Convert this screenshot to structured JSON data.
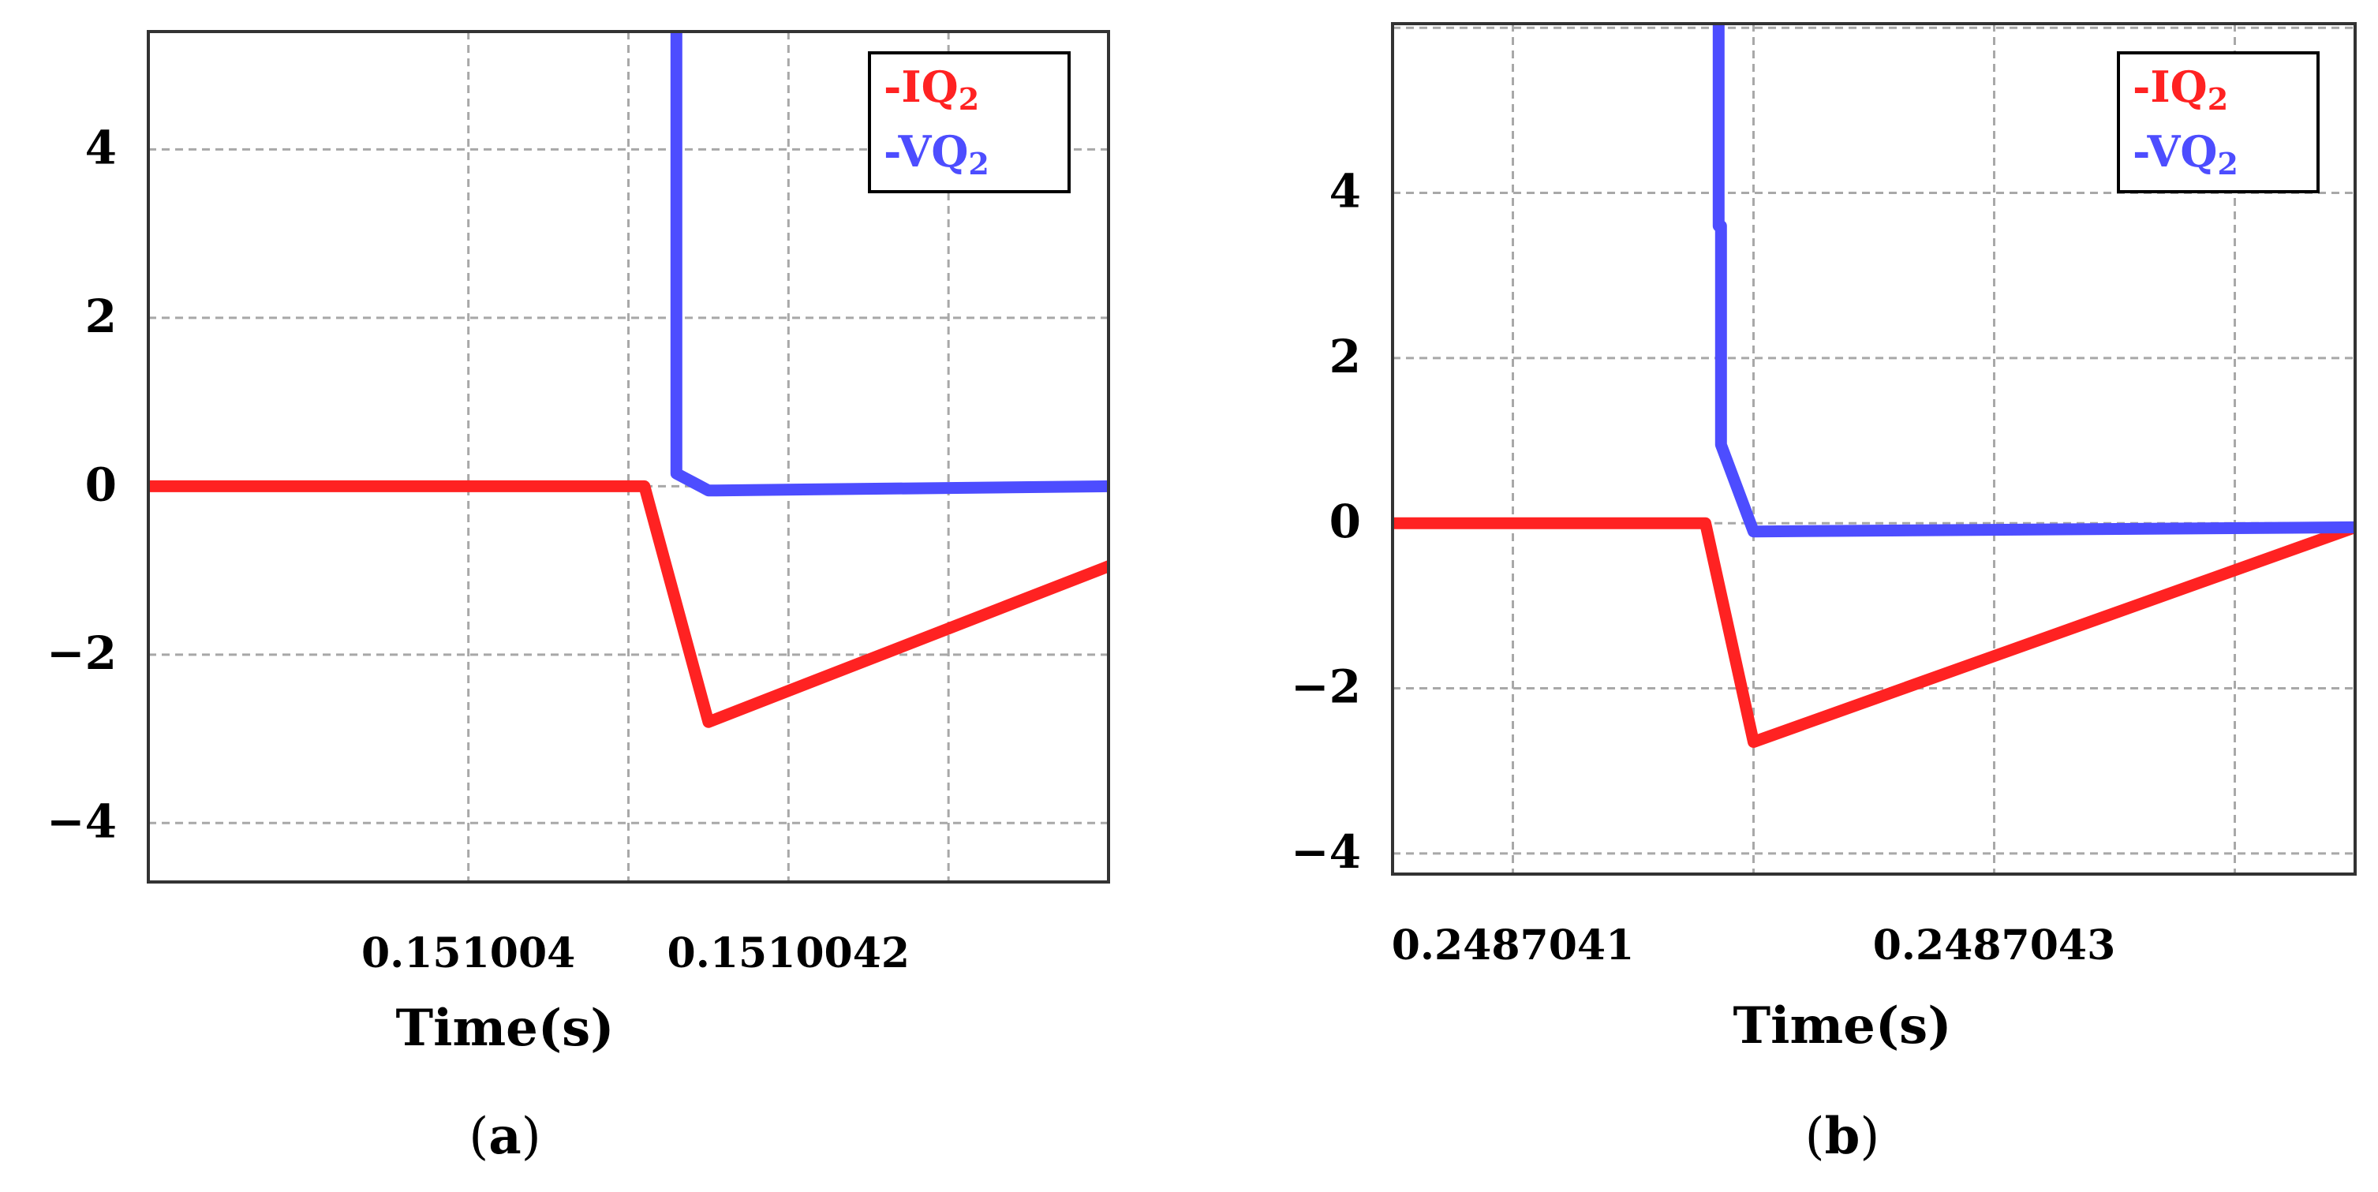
{
  "chart_data": [
    {
      "type": "line",
      "panel_label": "a",
      "xlabel": "Time(s)",
      "ylabel": "",
      "ylim": [
        -4.7,
        5.4
      ],
      "xlim": [
        0.1510038,
        0.1510044
      ],
      "x_ticks": [
        {
          "value": 0.151004,
          "label": "0.151004"
        },
        {
          "value": 0.1510042,
          "label": "0.1510042"
        }
      ],
      "x_gridlines": [
        0.151004,
        0.1510041,
        0.1510042,
        0.1510043
      ],
      "y_ticks": [
        {
          "value": 4,
          "label": "4"
        },
        {
          "value": 2,
          "label": "2"
        },
        {
          "value": 0,
          "label": "0"
        },
        {
          "value": -2,
          "label": "−2"
        },
        {
          "value": -4,
          "label": "−4"
        }
      ],
      "legend": {
        "position": "top-right"
      },
      "series": [
        {
          "name": "-IQ",
          "subscript": "2",
          "color": "#ff2222",
          "points": [
            [
              0.1510038,
              0
            ],
            [
              0.15100411,
              0
            ],
            [
              0.15100415,
              -2.8
            ],
            [
              0.1510044,
              -0.95
            ]
          ]
        },
        {
          "name": "-VQ",
          "subscript": "2",
          "color": "#4d4dff",
          "points": [
            [
              0.15100413,
              5.4
            ],
            [
              0.15100413,
              0.15
            ],
            [
              0.15100415,
              -0.05
            ],
            [
              0.151004155,
              -0.05
            ],
            [
              0.1510044,
              0.0
            ]
          ]
        }
      ]
    },
    {
      "type": "line",
      "panel_label": "b",
      "xlabel": "Time(s)",
      "ylabel": "",
      "ylim": [
        -4.25,
        6.05
      ],
      "xlim": [
        0.24870405,
        0.24870445
      ],
      "x_ticks": [
        {
          "value": 0.2487041,
          "label": "0.2487041"
        },
        {
          "value": 0.2487043,
          "label": "0.2487043"
        }
      ],
      "x_gridlines": [
        0.2487041,
        0.2487042,
        0.2487043,
        0.2487044
      ],
      "y_ticks": [
        {
          "value": 4,
          "label": "4"
        },
        {
          "value": 2,
          "label": "2"
        },
        {
          "value": 0,
          "label": "0"
        },
        {
          "value": -2,
          "label": "−2"
        },
        {
          "value": -4,
          "label": "−4"
        }
      ],
      "y_gridlines": [
        6,
        4,
        2,
        0,
        -2,
        -4
      ],
      "legend": {
        "position": "top-right"
      },
      "series": [
        {
          "name": "-IQ",
          "subscript": "2",
          "color": "#ff2222",
          "points": [
            [
              0.24870405,
              0
            ],
            [
              0.24870418,
              0
            ],
            [
              0.2487042,
              -2.65
            ],
            [
              0.24870445,
              -0.05
            ]
          ]
        },
        {
          "name": "-VQ",
          "subscript": "2",
          "color": "#4d4dff",
          "points": [
            [
              0.2487041855,
              6.05
            ],
            [
              0.2487041855,
              3.6
            ],
            [
              0.2487041865,
              3.6
            ],
            [
              0.2487041865,
              0.95
            ],
            [
              0.2487042,
              -0.1
            ],
            [
              0.24870445,
              -0.05
            ]
          ]
        }
      ]
    }
  ]
}
